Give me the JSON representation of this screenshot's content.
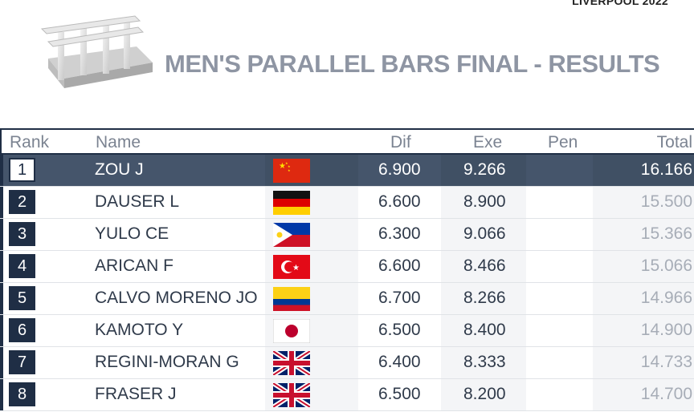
{
  "event_tag": "LIVERPOOL 2022",
  "title": "MEN'S PARALLEL BARS FINAL - RESULTS",
  "apparatus_icon": "parallel-bars-icon",
  "columns": {
    "rank": "Rank",
    "name": "Name",
    "dif": "Dif",
    "exe": "Exe",
    "pen": "Pen",
    "total": "Total"
  },
  "colors": {
    "navy": "#1f2e45",
    "highlight_row": "#45556b",
    "title_gray": "#8e95a3"
  },
  "rows": [
    {
      "rank": "1",
      "name": "ZOU J",
      "flag": "China",
      "dif": "6.900",
      "exe": "9.266",
      "pen": "",
      "total": "16.166"
    },
    {
      "rank": "2",
      "name": "DAUSER L",
      "flag": "Germany",
      "dif": "6.600",
      "exe": "8.900",
      "pen": "",
      "total": "15.500"
    },
    {
      "rank": "3",
      "name": "YULO CE",
      "flag": "Philippines",
      "dif": "6.300",
      "exe": "9.066",
      "pen": "",
      "total": "15.366"
    },
    {
      "rank": "4",
      "name": "ARICAN F",
      "flag": "Turkey",
      "dif": "6.600",
      "exe": "8.466",
      "pen": "",
      "total": "15.066"
    },
    {
      "rank": "5",
      "name": "CALVO MORENO JO",
      "flag": "Colombia",
      "dif": "6.700",
      "exe": "8.266",
      "pen": "",
      "total": "14.966"
    },
    {
      "rank": "6",
      "name": "KAMOTO Y",
      "flag": "Japan",
      "dif": "6.500",
      "exe": "8.400",
      "pen": "",
      "total": "14.900"
    },
    {
      "rank": "7",
      "name": "REGINI-MORAN G",
      "flag": "Great Britain",
      "dif": "6.400",
      "exe": "8.333",
      "pen": "",
      "total": "14.733"
    },
    {
      "rank": "8",
      "name": "FRASER J",
      "flag": "Great Britain",
      "dif": "6.500",
      "exe": "8.200",
      "pen": "",
      "total": "14.700"
    }
  ]
}
